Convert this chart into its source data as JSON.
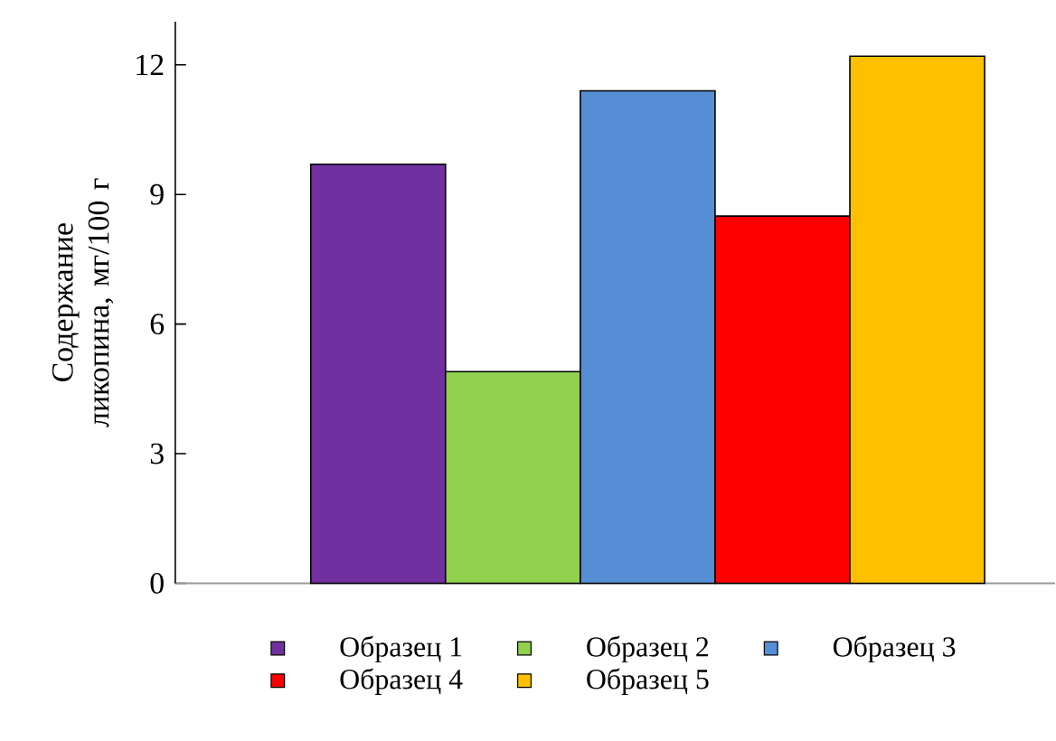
{
  "chart_data": {
    "type": "bar",
    "ylabel": "Содержание ликопина, мг/100 г",
    "categories": [
      null
    ],
    "series": [
      {
        "name": "Образец 1",
        "color": "#7030a0",
        "values": [
          9.7
        ]
      },
      {
        "name": "Образец 2",
        "color": "#92d050",
        "values": [
          4.9
        ]
      },
      {
        "name": "Образец 3",
        "color": "#558ed5",
        "values": [
          11.4
        ]
      },
      {
        "name": "Образец 4",
        "color": "#ff0000",
        "values": [
          8.5
        ]
      },
      {
        "name": "Образец 5",
        "color": "#ffc000",
        "values": [
          12.2
        ]
      }
    ],
    "ylim": [
      0,
      13
    ],
    "yticks": [
      0,
      3,
      6,
      9,
      12
    ],
    "legend": "bottom",
    "grid": false
  }
}
